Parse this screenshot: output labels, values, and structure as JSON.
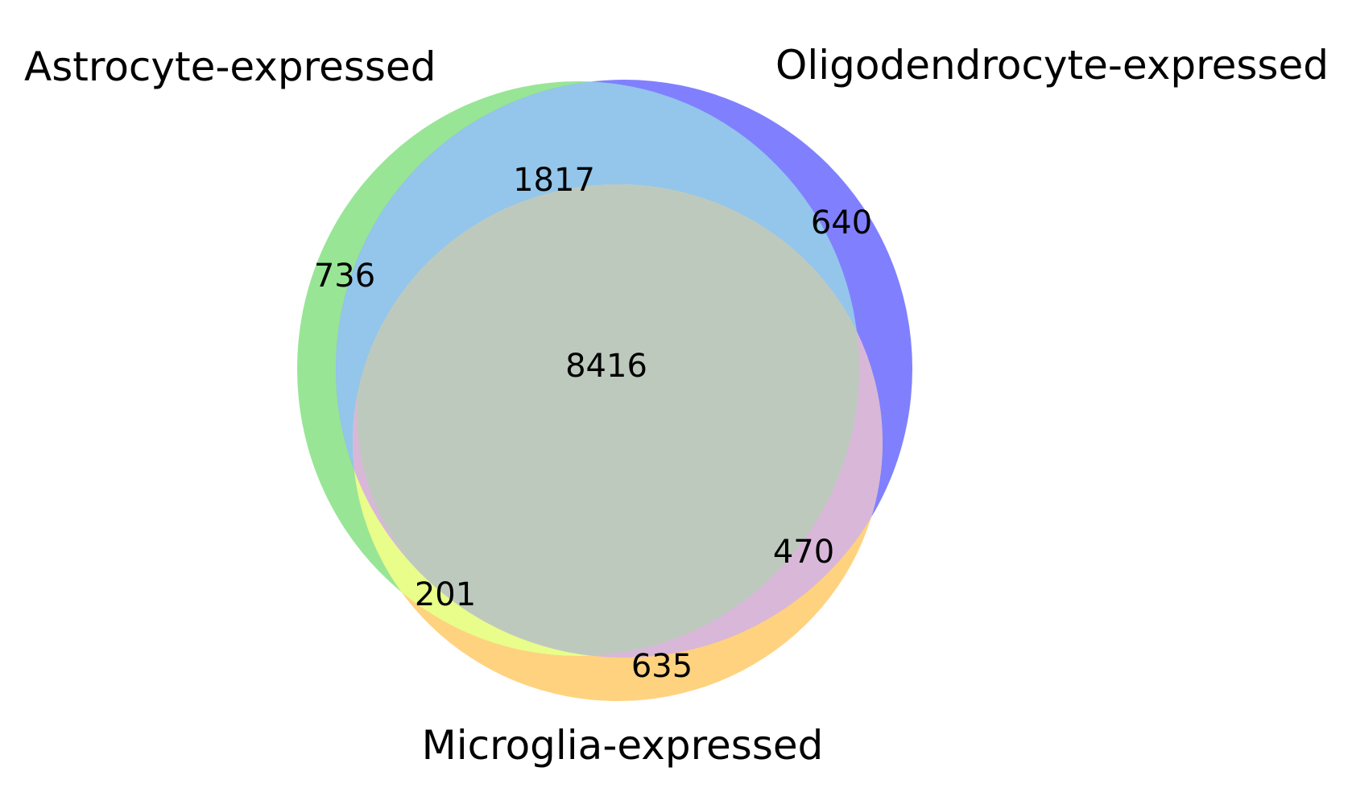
{
  "diagram": {
    "type": "venn3",
    "sets": [
      {
        "key": "astro",
        "label": "Astrocyte-expressed",
        "color": "#98e596"
      },
      {
        "key": "oligo",
        "label": "Oligodendrocyte-expressed",
        "color": "#8080fe"
      },
      {
        "key": "micro",
        "label": "Microglia-expressed",
        "color": "#ffd27f"
      }
    ],
    "regions": {
      "astro_only": "736",
      "oligo_only": "640",
      "astro_oligo": "1817",
      "all_three": "8416",
      "astro_micro": "201",
      "oligo_micro": "470",
      "micro_only": "635"
    },
    "region_colors": {
      "astro_only": "#98e596",
      "oligo_only": "#8080fe",
      "micro_only": "#ffd27f",
      "astro_oligo": "#93c6ea",
      "astro_micro": "#e8fd8a",
      "oligo_micro": "#d8b7d9",
      "all_three": "#bec9bd"
    }
  }
}
